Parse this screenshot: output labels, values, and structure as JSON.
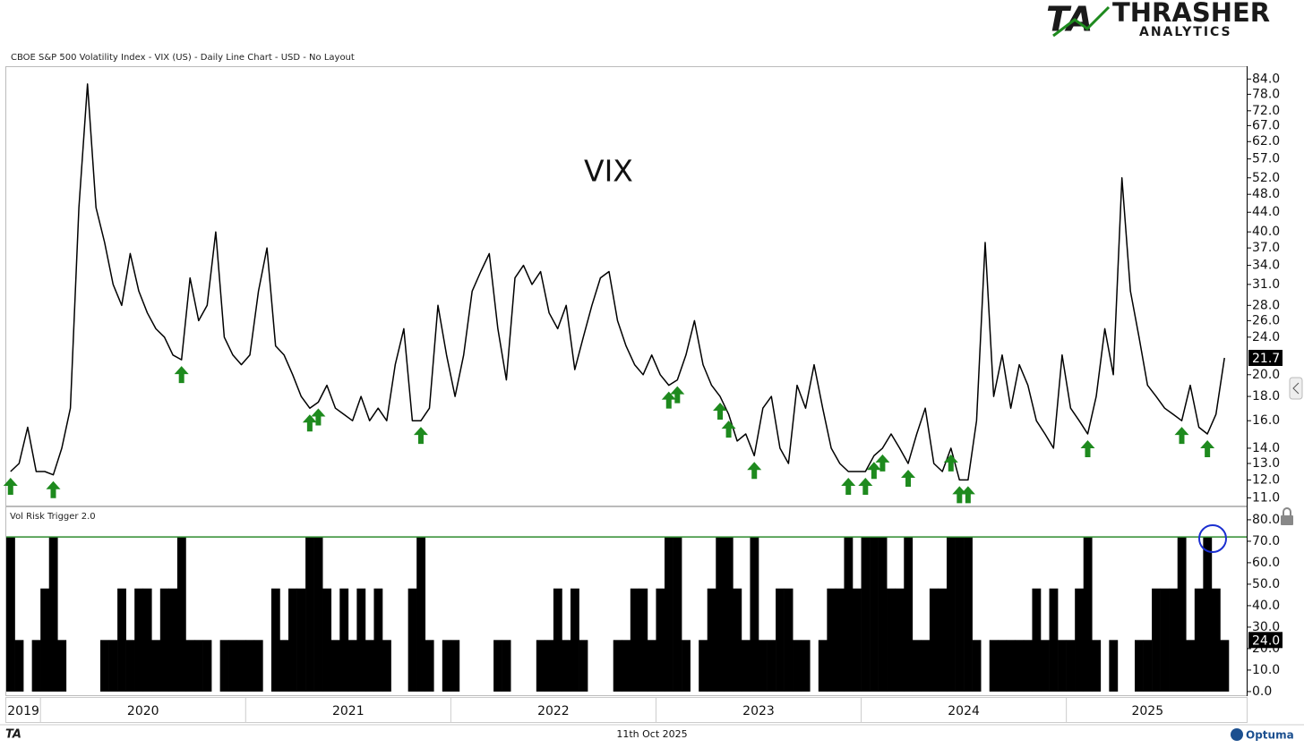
{
  "logo": {
    "mark": "TA",
    "name": "THRASHER",
    "sub": "ANALYTICS"
  },
  "footer": {
    "mark": "TA",
    "date": "11th Oct 2025",
    "brand": "Optuma"
  },
  "chart_data": [
    {
      "type": "line",
      "title": "CBOE S&P 500 Volatility Index - VIX (US) - Daily Line Chart - USD - No Layout",
      "log_scale": true,
      "ylim": [
        10.6,
        89
      ],
      "yticks": [
        {
          "value": 11,
          "label": "11.0"
        },
        {
          "value": 12,
          "label": "12.0"
        },
        {
          "value": 13,
          "label": "13.0"
        },
        {
          "value": 14,
          "label": "14.0"
        },
        {
          "value": 16,
          "label": "16.0"
        },
        {
          "value": 18,
          "label": "18.0"
        },
        {
          "value": 20,
          "label": "20.0"
        },
        {
          "value": 24,
          "label": "24.0"
        },
        {
          "value": 26,
          "label": "26.0"
        },
        {
          "value": 28,
          "label": "28.0"
        },
        {
          "value": 31,
          "label": "31.0"
        },
        {
          "value": 34,
          "label": "34.0"
        },
        {
          "value": 37,
          "label": "37.0"
        },
        {
          "value": 40,
          "label": "40.0"
        },
        {
          "value": 44,
          "label": "44.0"
        },
        {
          "value": 48,
          "label": "48.0"
        },
        {
          "value": 52,
          "label": "52.0"
        },
        {
          "value": 57,
          "label": "57.0"
        },
        {
          "value": 62,
          "label": "62.0"
        },
        {
          "value": 67,
          "label": "67.0"
        },
        {
          "value": 72,
          "label": "72.0"
        },
        {
          "value": 78,
          "label": "78.0"
        },
        {
          "value": 84,
          "label": "84.0"
        }
      ],
      "signal_color": "#1e8a1e",
      "series": [
        {
          "name": "VIX",
          "color": "#000000",
          "values": [
            12.5,
            13,
            15.5,
            12.5,
            12.5,
            12.3,
            14,
            17,
            45,
            82,
            45,
            38,
            31,
            28,
            36,
            30,
            27,
            25,
            24,
            22,
            21.5,
            32,
            26,
            28,
            40,
            24,
            22,
            21,
            22,
            30,
            37,
            23,
            22,
            20,
            18,
            17,
            17.5,
            19,
            17,
            16.5,
            16,
            18,
            16,
            17,
            16,
            21,
            25,
            16,
            16,
            17,
            28,
            22,
            18,
            22,
            30,
            33,
            36,
            25,
            19.5,
            32,
            34,
            31,
            33,
            27,
            25,
            28,
            20.5,
            24,
            28,
            32,
            33,
            26,
            23,
            21,
            20,
            22,
            20,
            19,
            19.5,
            22,
            26,
            21,
            19,
            18,
            16.5,
            14.5,
            15,
            13.5,
            17,
            18,
            14,
            13,
            19,
            17,
            21,
            17,
            14,
            13,
            12.5,
            12.5,
            12.5,
            13.5,
            14,
            15,
            14,
            13,
            15,
            17,
            13,
            12.5,
            14,
            12,
            12,
            16,
            38,
            18,
            22,
            17,
            21,
            19,
            16,
            15,
            14,
            22,
            17,
            16,
            15,
            18,
            25,
            20,
            52,
            30,
            24,
            19,
            18,
            17,
            16.5,
            16,
            19,
            15.5,
            15,
            16.5,
            21.7
          ]
        }
      ]
    },
    {
      "type": "bar",
      "ylim": [
        -1.7,
        85.8
      ],
      "trigger_line": 72,
      "trigger_color": "#2e8b2e",
      "yticks": [
        {
          "value": 0,
          "label": "0.0"
        },
        {
          "value": 10,
          "label": "10.0"
        },
        {
          "value": 20,
          "label": "20.0"
        },
        {
          "value": 30,
          "label": "30.0"
        },
        {
          "value": 40,
          "label": "40.0"
        },
        {
          "value": 50,
          "label": "50.0"
        },
        {
          "value": 60,
          "label": "60.0"
        },
        {
          "value": 70,
          "label": "70.0"
        },
        {
          "value": 80,
          "label": "80.0"
        }
      ],
      "categories": [
        "2019",
        null,
        null,
        null,
        "2020",
        null,
        null,
        null,
        null,
        null,
        null,
        null,
        null,
        null,
        null,
        null,
        null,
        null,
        null,
        null,
        null,
        null,
        null,
        null,
        null,
        null,
        null,
        null,
        "2021",
        null,
        null,
        null,
        null,
        null,
        null,
        null,
        null,
        null,
        null,
        null,
        null,
        null,
        null,
        null,
        null,
        null,
        null,
        null,
        null,
        null,
        null,
        null,
        "2022",
        null,
        null,
        null,
        null,
        null,
        null,
        null,
        null,
        null,
        null,
        null,
        null,
        null,
        null,
        null,
        null,
        null,
        null,
        null,
        null,
        null,
        null,
        null,
        "2023",
        null,
        null,
        null,
        null,
        null,
        null,
        null,
        null,
        null,
        null,
        null,
        null,
        null,
        null,
        null,
        null,
        null,
        null,
        null,
        null,
        null,
        null,
        null,
        "2024",
        null,
        null,
        null,
        null,
        null,
        null,
        null,
        null,
        null,
        null,
        null,
        null,
        null,
        null,
        null,
        null,
        null,
        null,
        null,
        null,
        null,
        null,
        null,
        "2025",
        null,
        null,
        null,
        null,
        null,
        null,
        null,
        null,
        null,
        null,
        null,
        null,
        null,
        null,
        null,
        null,
        null,
        null
      ],
      "series": [
        {
          "name": "Vol Risk Trigger 2.0",
          "color": "#000000",
          "values": [
            72,
            24,
            0,
            24,
            48,
            72,
            24,
            0,
            0,
            0,
            0,
            24,
            24,
            48,
            24,
            48,
            48,
            24,
            48,
            48,
            72,
            24,
            24,
            24,
            0,
            24,
            24,
            24,
            24,
            24,
            0,
            48,
            24,
            48,
            48,
            72,
            72,
            48,
            24,
            48,
            24,
            48,
            24,
            48,
            24,
            0,
            0,
            48,
            72,
            24,
            0,
            24,
            24,
            0,
            0,
            0,
            0,
            24,
            24,
            0,
            0,
            0,
            24,
            24,
            48,
            24,
            48,
            24,
            0,
            0,
            0,
            24,
            24,
            48,
            48,
            24,
            48,
            72,
            72,
            24,
            0,
            24,
            48,
            72,
            72,
            48,
            24,
            72,
            24,
            24,
            48,
            48,
            24,
            24,
            0,
            24,
            48,
            48,
            72,
            48,
            72,
            72,
            72,
            48,
            48,
            72,
            24,
            24,
            48,
            48,
            72,
            72,
            72,
            24,
            0,
            24,
            24,
            24,
            24,
            24,
            48,
            24,
            48,
            24,
            24,
            48,
            72,
            24,
            0,
            24,
            0,
            0,
            24,
            24,
            48,
            48,
            48,
            72,
            24,
            48,
            72,
            48,
            24
          ],
          "value_labels": [
            null,
            null,
            null,
            null,
            null,
            null,
            null,
            null,
            null,
            null,
            null,
            null,
            null,
            null,
            null,
            null,
            null,
            null,
            null,
            null,
            null,
            null,
            null,
            null,
            null,
            null,
            null,
            null,
            null,
            null,
            null,
            null,
            null,
            null,
            null,
            null,
            null,
            null,
            null,
            null,
            null,
            null,
            null,
            null,
            null,
            null,
            null,
            null,
            null,
            null,
            null,
            null,
            null,
            null,
            null,
            null,
            null,
            null,
            null,
            null,
            null,
            null,
            null,
            null,
            null,
            null,
            null,
            null,
            null,
            null,
            null,
            null,
            null,
            null,
            null,
            null,
            null,
            null,
            null,
            null,
            null,
            null,
            null,
            null,
            null,
            null,
            null,
            null,
            null,
            null,
            null,
            null,
            null,
            null,
            null,
            null,
            null,
            null,
            null,
            null,
            null,
            null,
            null,
            null,
            null,
            null,
            null,
            null,
            null,
            null,
            null,
            null,
            null,
            null,
            null,
            null,
            null,
            null,
            null,
            null,
            null,
            null,
            null,
            null,
            null,
            null,
            null,
            null,
            null,
            null,
            null,
            null,
            null,
            null,
            null,
            null,
            null,
            null,
            null,
            null,
            null,
            null,
            "24.0"
          ]
        }
      ]
    }
  ]
}
